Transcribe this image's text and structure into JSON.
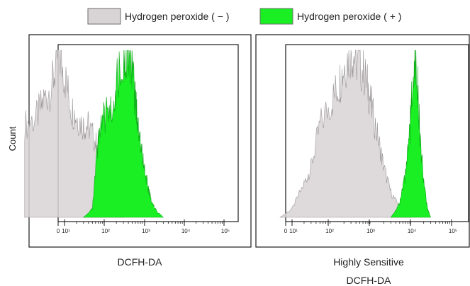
{
  "legend": [
    {
      "label": "Hydrogen peroxide ( − )",
      "fill": "#d8d4d6",
      "stroke": "#9a9698"
    },
    {
      "label": "Hydrogen peroxide ( + )",
      "fill": "#19ef23",
      "stroke": "#0fa818"
    }
  ],
  "chart_data": [
    {
      "type": "area",
      "subtype": "flow-cytometry-histogram",
      "xlabel": "DCFH-DA",
      "ylabel": "Count",
      "xscale": "log",
      "xlim": [
        0,
        100000
      ],
      "x_ticks": [
        "0",
        "10¹",
        "10²",
        "10³",
        "10⁴",
        "10⁵"
      ],
      "series": [
        {
          "name": "Hydrogen peroxide ( − )",
          "color": "#d8d4d6",
          "x": [
            1,
            2,
            3,
            5,
            7,
            10,
            15,
            20,
            30,
            40,
            60,
            80,
            100,
            150,
            200,
            300
          ],
          "y": [
            0.55,
            0.6,
            0.7,
            0.8,
            1.0,
            0.85,
            0.65,
            0.6,
            0.55,
            0.55,
            0.45,
            0.35,
            0.25,
            0.12,
            0.04,
            0
          ]
        },
        {
          "name": "Hydrogen peroxide ( + )",
          "color": "#19ef23",
          "x": [
            30,
            50,
            70,
            100,
            150,
            200,
            300,
            400,
            500,
            600,
            700,
            800,
            1000,
            1200,
            1500,
            2000,
            3000
          ],
          "y": [
            0,
            0.05,
            0.45,
            0.6,
            0.65,
            0.8,
            0.95,
            1.0,
            0.85,
            0.7,
            0.55,
            0.45,
            0.3,
            0.2,
            0.1,
            0.04,
            0
          ]
        }
      ]
    },
    {
      "type": "area",
      "subtype": "flow-cytometry-histogram",
      "xlabel": "Highly Sensitive DCFH-DA",
      "xlabel_lines": [
        "Highly Sensitive",
        "DCFH-DA"
      ],
      "ylabel": "",
      "xscale": "log",
      "xlim": [
        0,
        100000
      ],
      "x_ticks": [
        "0",
        "10¹",
        "10²",
        "10³",
        "10⁴",
        "10⁵"
      ],
      "series": [
        {
          "name": "Hydrogen peroxide ( − )",
          "color": "#d8d4d6",
          "x": [
            5,
            10,
            20,
            30,
            50,
            100,
            150,
            200,
            300,
            400,
            600,
            800,
            1000,
            1500,
            2000,
            3000,
            5000,
            8000,
            10000
          ],
          "y": [
            0,
            0.05,
            0.2,
            0.3,
            0.55,
            0.7,
            0.8,
            0.9,
            1.0,
            0.95,
            0.88,
            0.78,
            0.65,
            0.45,
            0.3,
            0.15,
            0.06,
            0.02,
            0
          ]
        },
        {
          "name": "Hydrogen peroxide ( + )",
          "color": "#19ef23",
          "x": [
            3000,
            5000,
            7000,
            9000,
            10000,
            12000,
            14000,
            16000,
            20000,
            25000,
            30000
          ],
          "y": [
            0,
            0.08,
            0.25,
            0.5,
            0.75,
            1.0,
            0.8,
            0.5,
            0.2,
            0.05,
            0
          ]
        }
      ]
    }
  ]
}
